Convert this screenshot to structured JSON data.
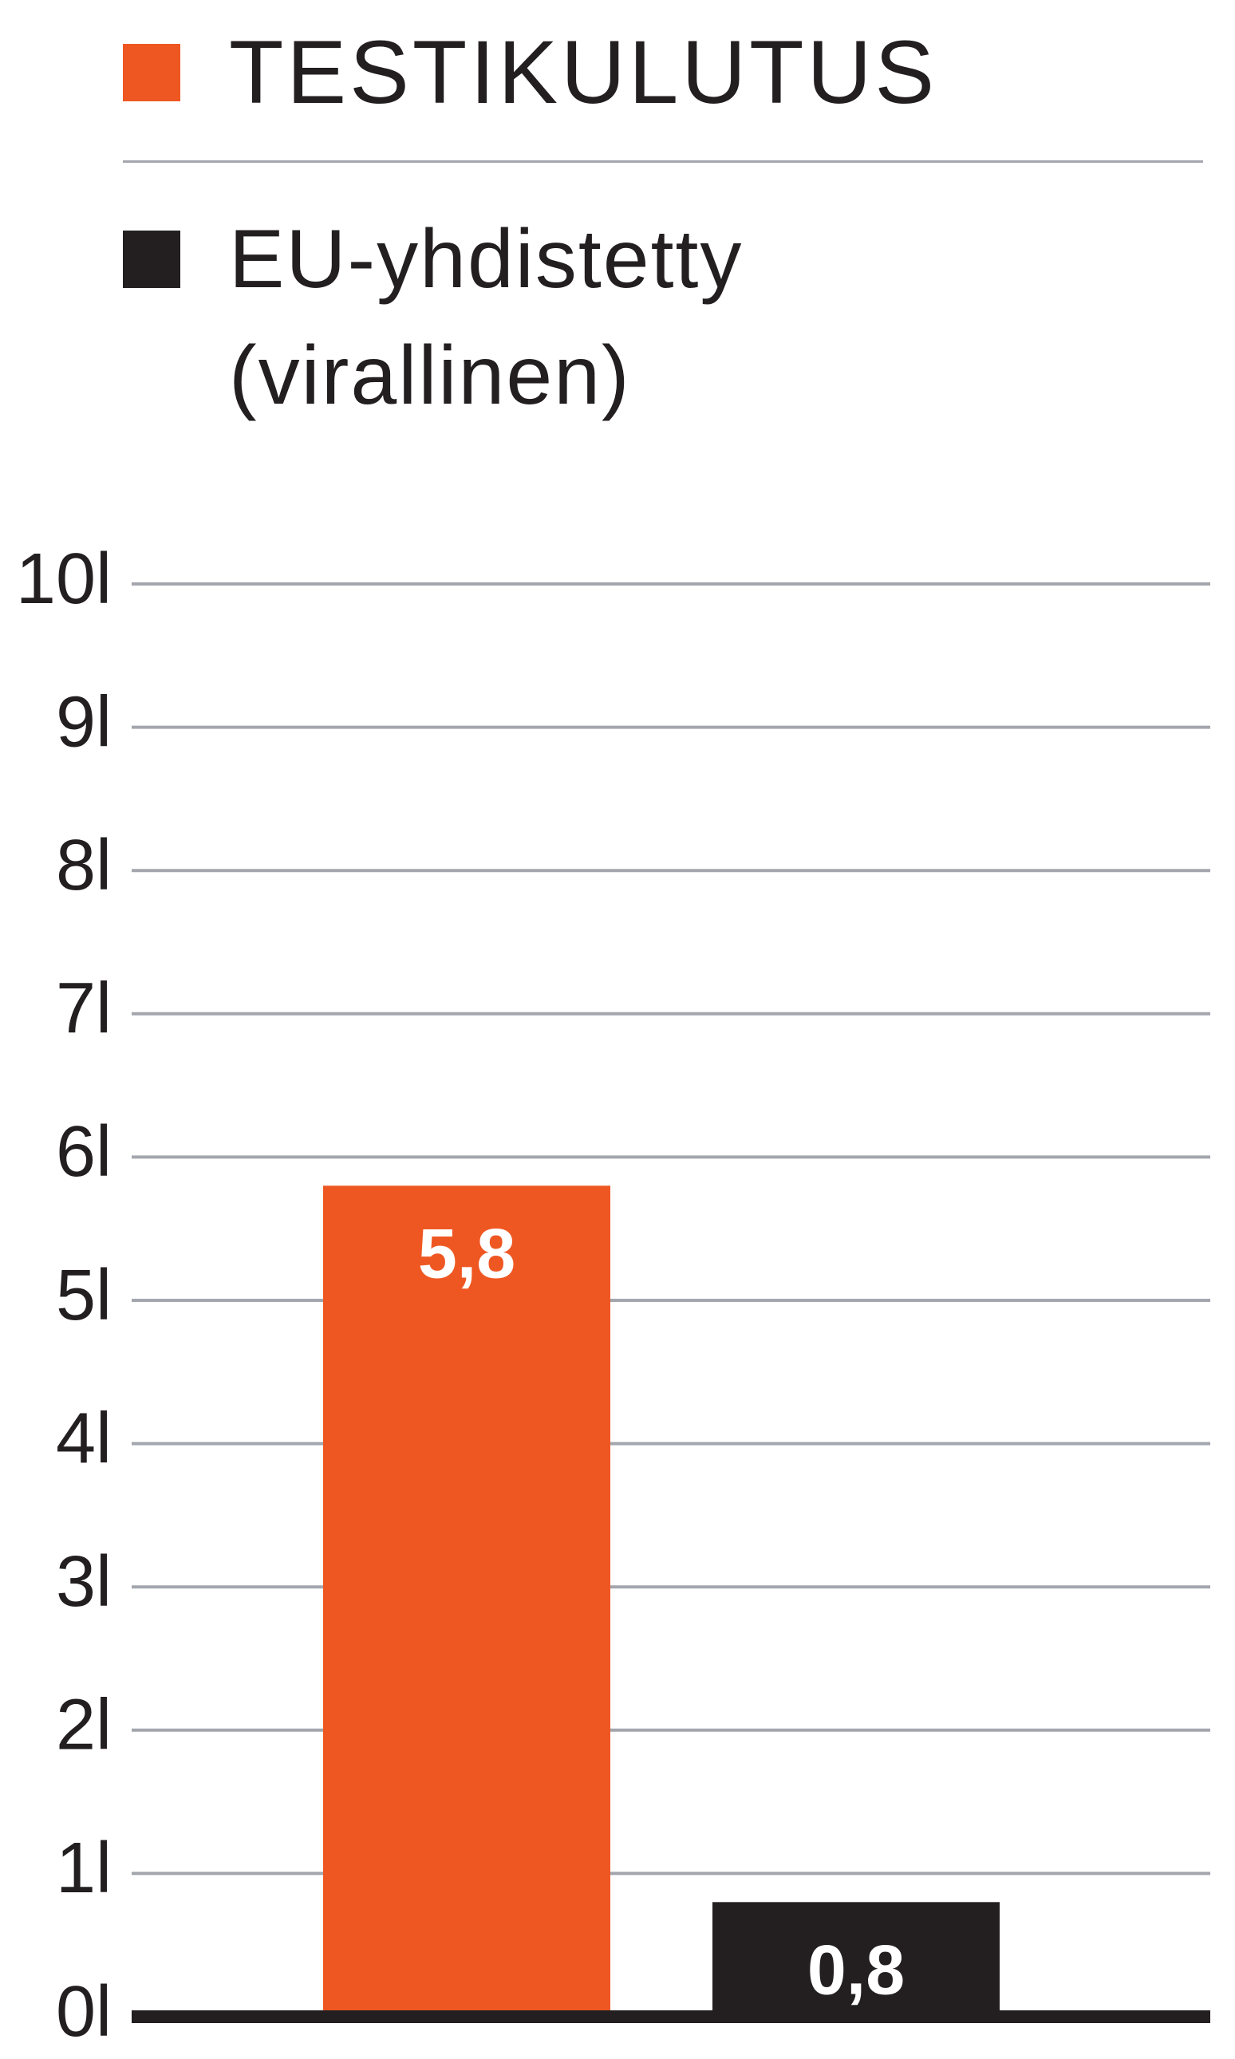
{
  "chart_data": {
    "type": "bar",
    "categories": [
      null,
      null
    ],
    "series": [
      {
        "name": "TESTIKULUTUS",
        "color": "#ef5722",
        "values": [
          5.8,
          null
        ],
        "value_labels": [
          "5,8",
          null
        ]
      },
      {
        "name": "EU-yhdistetty (virallinen)",
        "color": "#231f20",
        "values": [
          null,
          0.8
        ],
        "value_labels": [
          null,
          "0,8"
        ]
      }
    ],
    "ylim": [
      0,
      10
    ],
    "yticks": [
      {
        "value": 0,
        "label": "0l"
      },
      {
        "value": 1,
        "label": "1l"
      },
      {
        "value": 2,
        "label": "2l"
      },
      {
        "value": 3,
        "label": "3l"
      },
      {
        "value": 4,
        "label": "4l"
      },
      {
        "value": 5,
        "label": "5l"
      },
      {
        "value": 6,
        "label": "6l"
      },
      {
        "value": 7,
        "label": "7l"
      },
      {
        "value": 8,
        "label": "8l"
      },
      {
        "value": 9,
        "label": "9l"
      },
      {
        "value": 10,
        "label": "10l"
      }
    ],
    "grid": true
  }
}
